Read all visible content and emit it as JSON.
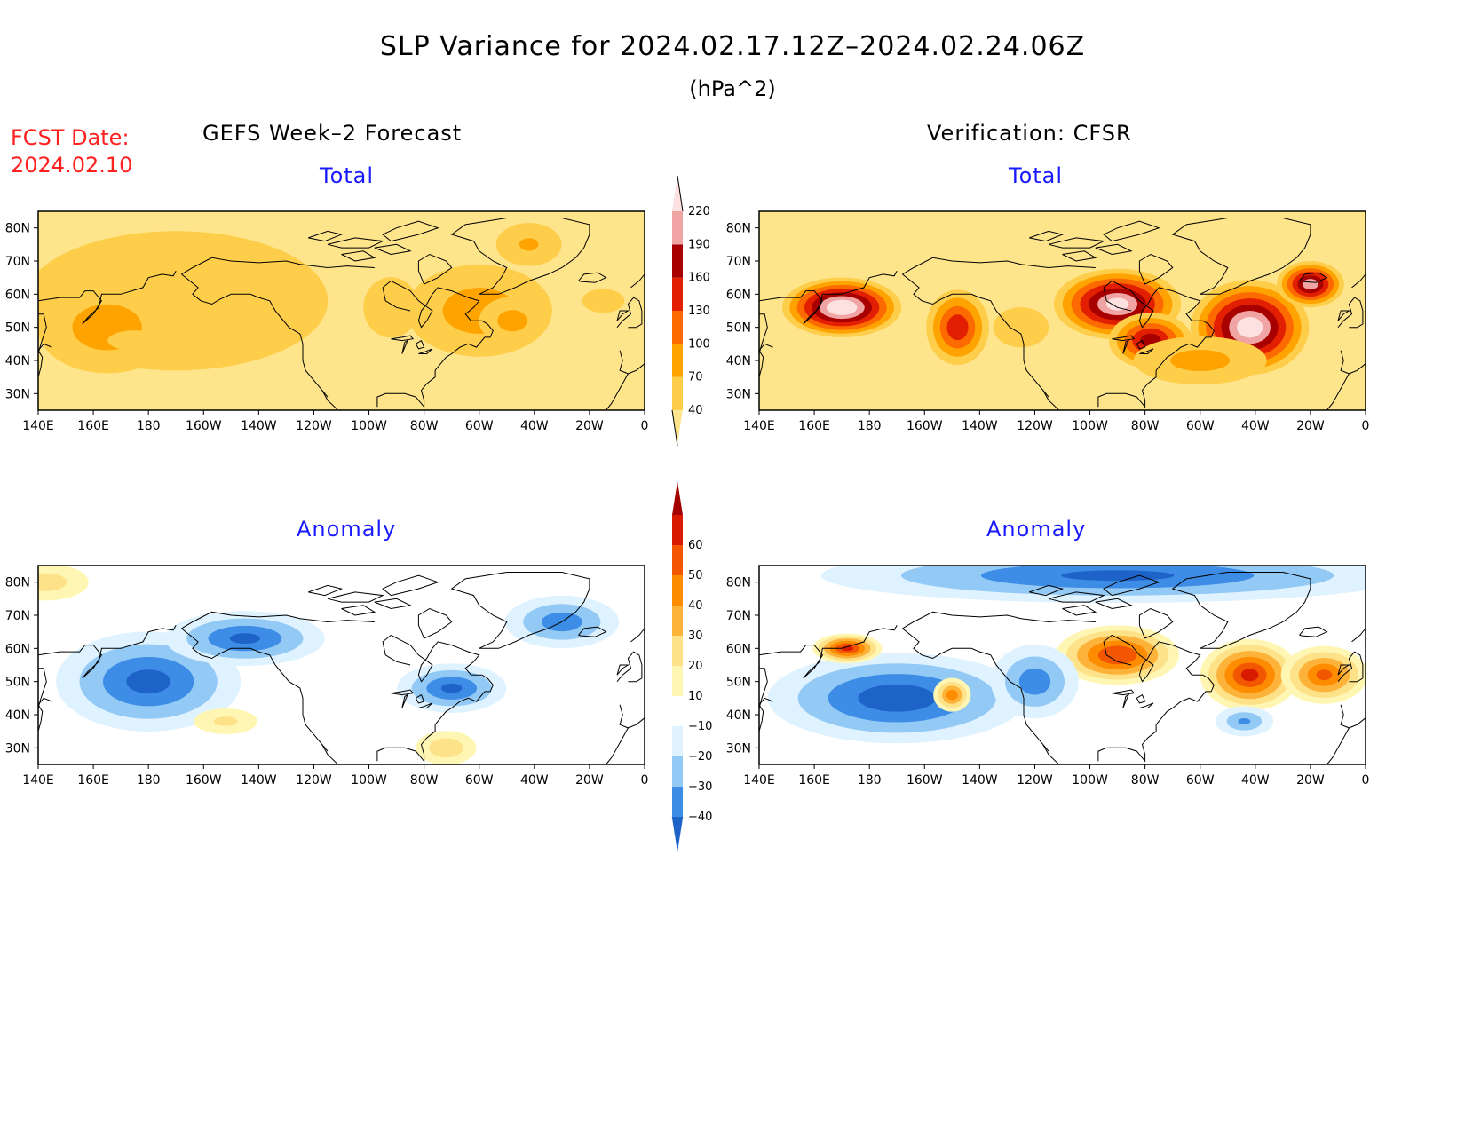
{
  "header": {
    "title": "SLP Variance for 2024.02.17.12Z–2024.02.24.06Z",
    "units": "(hPa^2)",
    "fcst_label": "FCST Date:",
    "fcst_date": "2024.02.10"
  },
  "columns": {
    "left_title": "GEFS Week–2 Forecast",
    "right_title": "Verification: CFSR"
  },
  "panels": [
    {
      "id": "forecast-total",
      "subtitle": "Total",
      "scale": "total",
      "blobs": [
        {
          "lon": 190,
          "lat": 58,
          "rx": 110,
          "ry": 42,
          "v": 65
        },
        {
          "lon": 165,
          "lat": 50,
          "rx": 40,
          "ry": 22,
          "v": 85
        },
        {
          "lon": 175,
          "lat": 46,
          "rx": 38,
          "ry": 12,
          "v": 45
        },
        {
          "lon": 268,
          "lat": 56,
          "rx": 22,
          "ry": 20,
          "v": 60
        },
        {
          "lon": 300,
          "lat": 55,
          "rx": 42,
          "ry": 22,
          "v": 85
        },
        {
          "lon": 312,
          "lat": 52,
          "rx": 20,
          "ry": 12,
          "v": 80
        },
        {
          "lon": 318,
          "lat": 75,
          "rx": 22,
          "ry": 12,
          "v": 70
        },
        {
          "lon": 345,
          "lat": 58,
          "rx": 30,
          "ry": 14,
          "v": 45
        }
      ]
    },
    {
      "id": "verification-total",
      "subtitle": "Total",
      "scale": "total",
      "blobs": [
        {
          "lon": 170,
          "lat": 56,
          "rx": 24,
          "ry": 10,
          "v": 240
        },
        {
          "lon": 212,
          "lat": 50,
          "rx": 14,
          "ry": 14,
          "v": 150
        },
        {
          "lon": 270,
          "lat": 57,
          "rx": 26,
          "ry": 12,
          "v": 220
        },
        {
          "lon": 282,
          "lat": 46,
          "rx": 18,
          "ry": 10,
          "v": 170
        },
        {
          "lon": 318,
          "lat": 50,
          "rx": 24,
          "ry": 16,
          "v": 230
        },
        {
          "lon": 340,
          "lat": 63,
          "rx": 14,
          "ry": 8,
          "v": 200
        },
        {
          "lon": 300,
          "lat": 40,
          "rx": 40,
          "ry": 12,
          "v": 80
        },
        {
          "lon": 235,
          "lat": 50,
          "rx": 30,
          "ry": 18,
          "v": 50
        }
      ]
    },
    {
      "id": "forecast-anomaly",
      "subtitle": "Anomaly",
      "scale": "anomaly",
      "blobs": [
        {
          "lon": 180,
          "lat": 50,
          "rx": 40,
          "ry": 18,
          "v": -42
        },
        {
          "lon": 215,
          "lat": 63,
          "rx": 35,
          "ry": 10,
          "v": -40
        },
        {
          "lon": 290,
          "lat": 48,
          "rx": 24,
          "ry": 9,
          "v": -40
        },
        {
          "lon": 330,
          "lat": 68,
          "rx": 26,
          "ry": 10,
          "v": -35
        },
        {
          "lon": 288,
          "lat": 30,
          "rx": 15,
          "ry": 7,
          "v": 28
        },
        {
          "lon": 208,
          "lat": 38,
          "rx": 18,
          "ry": 6,
          "v": 22
        },
        {
          "lon": 143,
          "lat": 80,
          "rx": 22,
          "ry": 8,
          "v": 25
        }
      ]
    },
    {
      "id": "verification-anomaly",
      "subtitle": "Anomaly",
      "scale": "anomaly",
      "blobs": [
        {
          "lon": 190,
          "lat": 45,
          "rx": 55,
          "ry": 16,
          "v": -45
        },
        {
          "lon": 270,
          "lat": 82,
          "rx": 130,
          "ry": 10,
          "v": -40
        },
        {
          "lon": 270,
          "lat": 58,
          "rx": 25,
          "ry": 10,
          "v": 58
        },
        {
          "lon": 318,
          "lat": 52,
          "rx": 20,
          "ry": 12,
          "v": 60
        },
        {
          "lon": 345,
          "lat": 52,
          "rx": 18,
          "ry": 10,
          "v": 50
        },
        {
          "lon": 172,
          "lat": 60,
          "rx": 14,
          "ry": 5,
          "v": 60
        },
        {
          "lon": 210,
          "lat": 46,
          "rx": 8,
          "ry": 6,
          "v": 45
        },
        {
          "lon": 240,
          "lat": 50,
          "rx": 20,
          "ry": 14,
          "v": -35
        },
        {
          "lon": 316,
          "lat": 38,
          "rx": 14,
          "ry": 6,
          "v": -30
        }
      ]
    }
  ],
  "axes": {
    "lat_labels": [
      "80N",
      "70N",
      "60N",
      "50N",
      "40N",
      "30N"
    ],
    "lat_values": [
      80,
      70,
      60,
      50,
      40,
      30
    ],
    "lon_labels": [
      "140E",
      "160E",
      "180",
      "160W",
      "140W",
      "120W",
      "100W",
      "80W",
      "60W",
      "40W",
      "20W",
      "0"
    ],
    "lon_values": [
      140,
      160,
      180,
      200,
      220,
      240,
      260,
      280,
      300,
      320,
      340,
      360
    ],
    "lon_range": [
      140,
      360
    ],
    "lat_range": [
      25,
      85
    ]
  },
  "colorbars": {
    "total": {
      "levels": [
        "220",
        "190",
        "160",
        "130",
        "100",
        "70",
        "40"
      ],
      "level_values": [
        220,
        190,
        160,
        130,
        100,
        70,
        40
      ],
      "colors_low_to_high": [
        "#fee48a",
        "#fecd4a",
        "#fea300",
        "#fd6a00",
        "#e21f00",
        "#a80000",
        "#f0a4a4",
        "#fde0e0"
      ]
    },
    "anomaly": {
      "levels": [
        "60",
        "50",
        "40",
        "30",
        "20",
        "10",
        "−10",
        "−20",
        "−30",
        "−40"
      ],
      "level_values": [
        60,
        50,
        40,
        30,
        20,
        10,
        -10,
        -20,
        -30,
        -40
      ],
      "colors_low_to_high": [
        "#1e64c8",
        "#3d8ce6",
        "#93c9f5",
        "#dff2ff",
        "#ffffff",
        "#fff6b4",
        "#fee28a",
        "#fdb23a",
        "#fd8c00",
        "#f25600",
        "#d81a00",
        "#a40000"
      ]
    }
  }
}
